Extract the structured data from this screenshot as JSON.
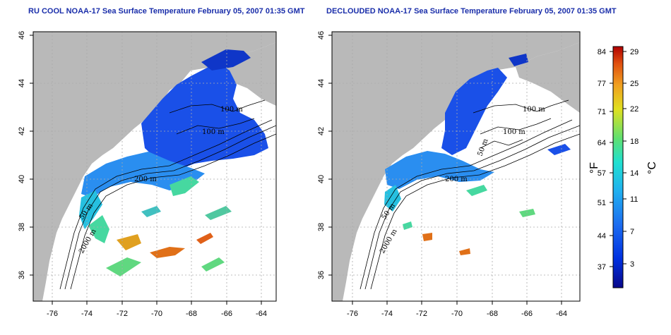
{
  "panels": [
    {
      "title": "RU COOL NOAA-17 Sea Surface Temperature February 05, 2007 01:35 GMT",
      "contour_labels": [
        "100 m",
        "100 m",
        "200 m",
        "50 m",
        "2000 m"
      ]
    },
    {
      "title": "DECLOUDED NOAA-17 Sea Surface Temperature February 05, 2007 01:35 GMT",
      "contour_labels": [
        "100 m",
        "100 m",
        "50 m",
        "200 m",
        "50 m",
        "2000 m"
      ]
    }
  ],
  "axes": {
    "x_ticks": [
      "-76",
      "-74",
      "-72",
      "-70",
      "-68",
      "-66",
      "-64"
    ],
    "y_ticks": [
      "36",
      "38",
      "40",
      "42",
      "44",
      "46"
    ]
  },
  "colorbar": {
    "f_ticks": [
      "84",
      "77",
      "71",
      "64",
      "57",
      "51",
      "44",
      "37"
    ],
    "c_ticks": [
      "29",
      "25",
      "22",
      "18",
      "14",
      "11",
      "7",
      "3"
    ],
    "f_unit": "°F",
    "c_unit": "°C",
    "colors": [
      "#08088a",
      "#0030e0",
      "#1c6cf0",
      "#20b0f0",
      "#20e0d0",
      "#60e070",
      "#e0e020",
      "#f0a020",
      "#e05010",
      "#b00000"
    ]
  },
  "colors": {
    "land": "#b9b9b9",
    "grid": "#aaaaaa",
    "title": "#1a2eaa"
  }
}
